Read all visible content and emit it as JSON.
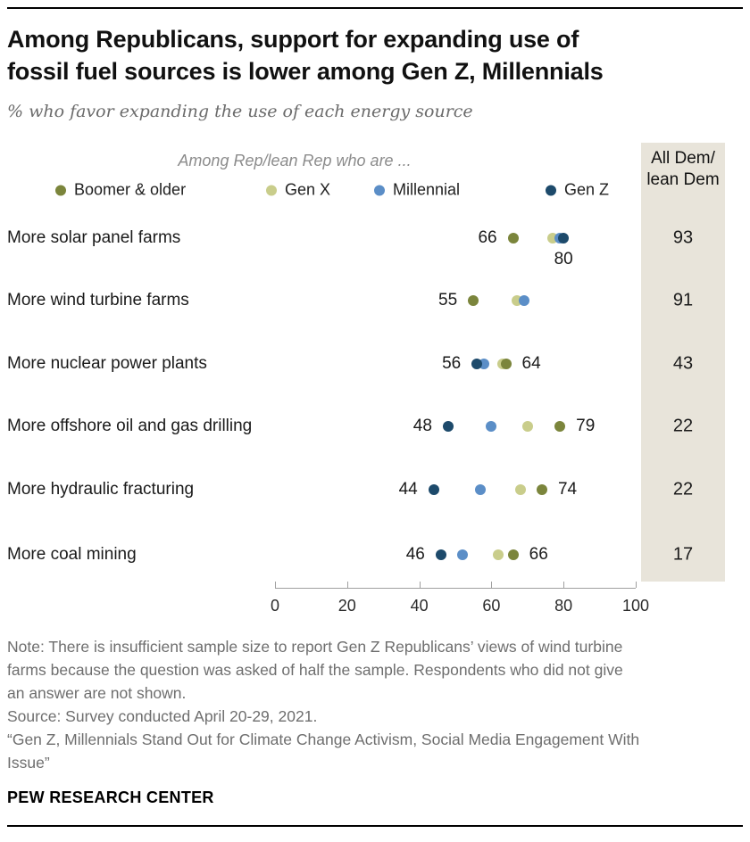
{
  "header": {
    "title_lines": [
      "Among Republicans, support for expanding use of",
      "fossil fuel sources is lower among Gen Z, Millennials"
    ],
    "subtitle": "% who favor expanding the use of each energy source"
  },
  "legend": {
    "context_label": "Among Rep/lean Rep who are ...",
    "items": [
      {
        "label": "Boomer & older",
        "color": "#7b853c"
      },
      {
        "label": "Gen X",
        "color": "#c9cd8b"
      },
      {
        "label": "Millennial",
        "color": "#5b8ec7"
      },
      {
        "label": "Gen Z",
        "color": "#1d4a6b"
      }
    ]
  },
  "dem_column": {
    "header": "All Dem/\nlean Dem",
    "bg_color": "#e8e4da"
  },
  "chart_data": {
    "type": "scatter",
    "variant": "dot-plot",
    "title": "Among Republicans, support for expanding use of fossil fuel sources is lower among Gen Z, Millennials",
    "x_axis": {
      "min": 0,
      "max": 100,
      "ticks": [
        0,
        20,
        40,
        60,
        80,
        100
      ]
    },
    "series_names": [
      "Boomer & older",
      "Gen X",
      "Millennial",
      "Gen Z"
    ],
    "rows": [
      {
        "category": "More solar panel farms",
        "dots": [
          {
            "series": "Boomer & older",
            "value": 66
          },
          {
            "series": "Gen X",
            "value": 77
          },
          {
            "series": "Millennial",
            "value": 79
          },
          {
            "series": "Gen Z",
            "value": 80
          }
        ],
        "labels": [
          {
            "text": "66",
            "at": 66,
            "side": "left"
          },
          {
            "text": "80",
            "at": 80,
            "side": "below"
          }
        ],
        "all_dem": 93
      },
      {
        "category": "More wind turbine farms",
        "dots": [
          {
            "series": "Boomer & older",
            "value": 55
          },
          {
            "series": "Gen X",
            "value": 67
          },
          {
            "series": "Millennial",
            "value": 69
          }
        ],
        "labels": [
          {
            "text": "55",
            "at": 55,
            "side": "left"
          }
        ],
        "all_dem": 91
      },
      {
        "category": "More nuclear power plants",
        "dots": [
          {
            "series": "Gen Z",
            "value": 56
          },
          {
            "series": "Millennial",
            "value": 58
          },
          {
            "series": "Gen X",
            "value": 63
          },
          {
            "series": "Boomer & older",
            "value": 64
          }
        ],
        "labels": [
          {
            "text": "56",
            "at": 56,
            "side": "left"
          },
          {
            "text": "64",
            "at": 64,
            "side": "right"
          }
        ],
        "all_dem": 43
      },
      {
        "category": "More offshore oil and gas drilling",
        "dots": [
          {
            "series": "Gen Z",
            "value": 48
          },
          {
            "series": "Millennial",
            "value": 60
          },
          {
            "series": "Gen X",
            "value": 70
          },
          {
            "series": "Boomer & older",
            "value": 79
          }
        ],
        "labels": [
          {
            "text": "48",
            "at": 48,
            "side": "left"
          },
          {
            "text": "79",
            "at": 79,
            "side": "right"
          }
        ],
        "all_dem": 22
      },
      {
        "category": "More hydraulic fracturing",
        "dots": [
          {
            "series": "Gen Z",
            "value": 44
          },
          {
            "series": "Millennial",
            "value": 57
          },
          {
            "series": "Gen X",
            "value": 68
          },
          {
            "series": "Boomer & older",
            "value": 74
          }
        ],
        "labels": [
          {
            "text": "44",
            "at": 44,
            "side": "left"
          },
          {
            "text": "74",
            "at": 74,
            "side": "right"
          }
        ],
        "all_dem": 22
      },
      {
        "category": "More coal mining",
        "dots": [
          {
            "series": "Gen Z",
            "value": 46
          },
          {
            "series": "Millennial",
            "value": 52
          },
          {
            "series": "Gen X",
            "value": 62
          },
          {
            "series": "Boomer & older",
            "value": 66
          }
        ],
        "labels": [
          {
            "text": "46",
            "at": 46,
            "side": "left"
          },
          {
            "text": "66",
            "at": 66,
            "side": "right"
          }
        ],
        "all_dem": 17
      }
    ]
  },
  "notes": {
    "lines": [
      "Note: There is insufficient sample size to report Gen Z Republicans’ views of wind turbine",
      "farms because the question was asked of half the sample. Respondents who did not give",
      "an answer are not shown.",
      "Source: Survey conducted April 20-29, 2021.",
      "“Gen Z, Millennials Stand Out for Climate Change Activism, Social Media Engagement With",
      "Issue”"
    ]
  },
  "brand": "PEW RESEARCH CENTER"
}
